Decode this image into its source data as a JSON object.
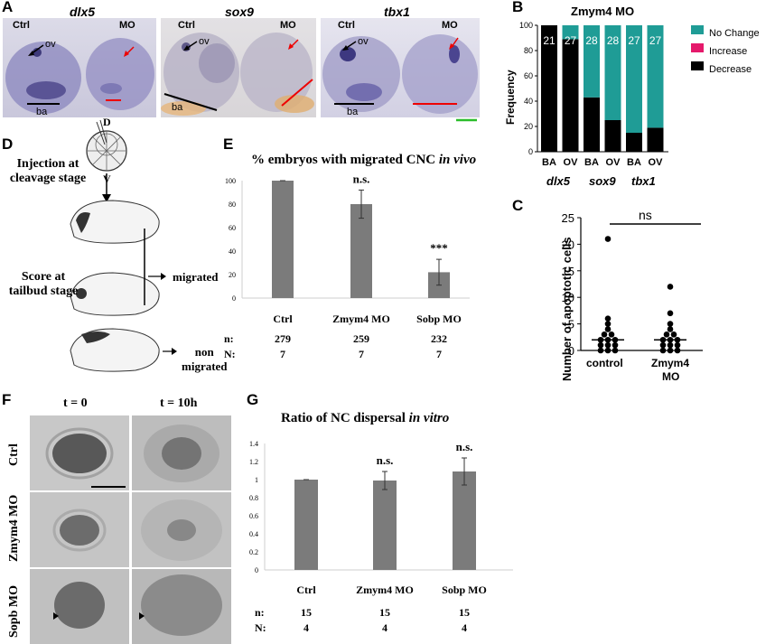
{
  "panelA": {
    "label": "A",
    "genes": [
      "dlx5",
      "sox9",
      "tbx1"
    ],
    "ctrl": "Ctrl",
    "mo": "MO",
    "ov": "ov",
    "ba": "ba"
  },
  "panelB": {
    "label": "B",
    "title": "Zmym4 MO",
    "ylabel": "Frequency",
    "legend": [
      "No Change",
      "Increase",
      "Decrease"
    ],
    "colors": {
      "no_change": "#1f9c96",
      "increase": "#e5196b",
      "decrease": "#000000"
    },
    "gene_labels": [
      "dlx5",
      "sox9",
      "tbx1"
    ],
    "chart_data": {
      "type": "bar",
      "stacked": true,
      "categories": [
        "BA",
        "OV",
        "BA",
        "OV",
        "BA",
        "OV"
      ],
      "series": [
        {
          "name": "Decrease",
          "values": [
            100,
            89,
            43,
            25,
            15,
            19
          ]
        },
        {
          "name": "Increase",
          "values": [
            0,
            0,
            0,
            0,
            0,
            0
          ]
        },
        {
          "name": "No Change",
          "values": [
            0,
            11,
            57,
            75,
            85,
            81
          ]
        }
      ],
      "bar_labels": [
        "21",
        "27",
        "28",
        "28",
        "27",
        "27"
      ],
      "ylabel": "Frequency",
      "ylim": [
        0,
        100
      ],
      "yticks": [
        "0",
        "20",
        "40",
        "60",
        "80",
        "100"
      ],
      "legend_position": "right"
    }
  },
  "panelC": {
    "label": "C",
    "ylabel": "Number of apoptotic cells",
    "sig": "ns",
    "chart_data": {
      "type": "scatter",
      "categories": [
        "control",
        "Zmym4 MO"
      ],
      "series": [
        {
          "name": "control",
          "values": [
            21,
            6,
            5,
            4,
            3,
            3,
            2,
            2,
            2,
            1,
            1,
            1,
            0,
            0,
            0
          ],
          "median": 2
        },
        {
          "name": "Zmym4 MO",
          "values": [
            12,
            7,
            5,
            4,
            3,
            3,
            2,
            2,
            2,
            1,
            1,
            1,
            0,
            0,
            0
          ],
          "median": 2
        }
      ],
      "ylim": [
        0,
        25
      ],
      "yticks": [
        "0",
        "5",
        "10",
        "15",
        "20",
        "25"
      ],
      "xlabels": [
        "control",
        "Zmym4",
        "MO"
      ]
    }
  },
  "panelD": {
    "label": "D",
    "D": "D",
    "V": "V",
    "injection": [
      "Injection at",
      "cleavage stage"
    ],
    "score": [
      "Score  at",
      "tailbud stage"
    ],
    "migrated": "migrated",
    "non": [
      "non",
      "migrated"
    ]
  },
  "panelE": {
    "label": "E",
    "title_pre": "% embryos with migrated CNC ",
    "title_it": "in vivo",
    "chart_data": {
      "type": "bar",
      "categories": [
        "Ctrl",
        "Zmym4 MO",
        "Sobp MO"
      ],
      "values": [
        100,
        80,
        22
      ],
      "errors": [
        0,
        12,
        11
      ],
      "annotations": [
        "",
        "n.s.",
        "***"
      ],
      "ylim": [
        0,
        100
      ],
      "yticks": [
        "0",
        "20",
        "40",
        "60",
        "80",
        "100"
      ]
    },
    "n_label": "n:",
    "N_label": "N:",
    "n": [
      "279",
      "259",
      "232"
    ],
    "N": [
      "7",
      "7",
      "7"
    ]
  },
  "panelF": {
    "label": "F",
    "t0": "t = 0",
    "t10": "t = 10h",
    "rows": [
      "Ctrl",
      "Zmym4 MO",
      "Sopb MO"
    ]
  },
  "panelG": {
    "label": "G",
    "title_pre": "Ratio of NC dispersal ",
    "title_it": "in vitro",
    "chart_data": {
      "type": "bar",
      "categories": [
        "Ctrl",
        "Zmym4 MO",
        "Sobp MO"
      ],
      "values": [
        1.0,
        0.99,
        1.09
      ],
      "errors": [
        0,
        0.1,
        0.15
      ],
      "annotations": [
        "",
        "n.s.",
        "n.s."
      ],
      "ylim": [
        0,
        1.4
      ],
      "yticks": [
        "0",
        "0.2",
        "0.4",
        "0.6",
        "0.8",
        "1",
        "1.2",
        "1.4"
      ]
    },
    "n_label": "n:",
    "N_label": "N:",
    "n": [
      "15",
      "15",
      "15"
    ],
    "N": [
      "4",
      "4",
      "4"
    ]
  }
}
